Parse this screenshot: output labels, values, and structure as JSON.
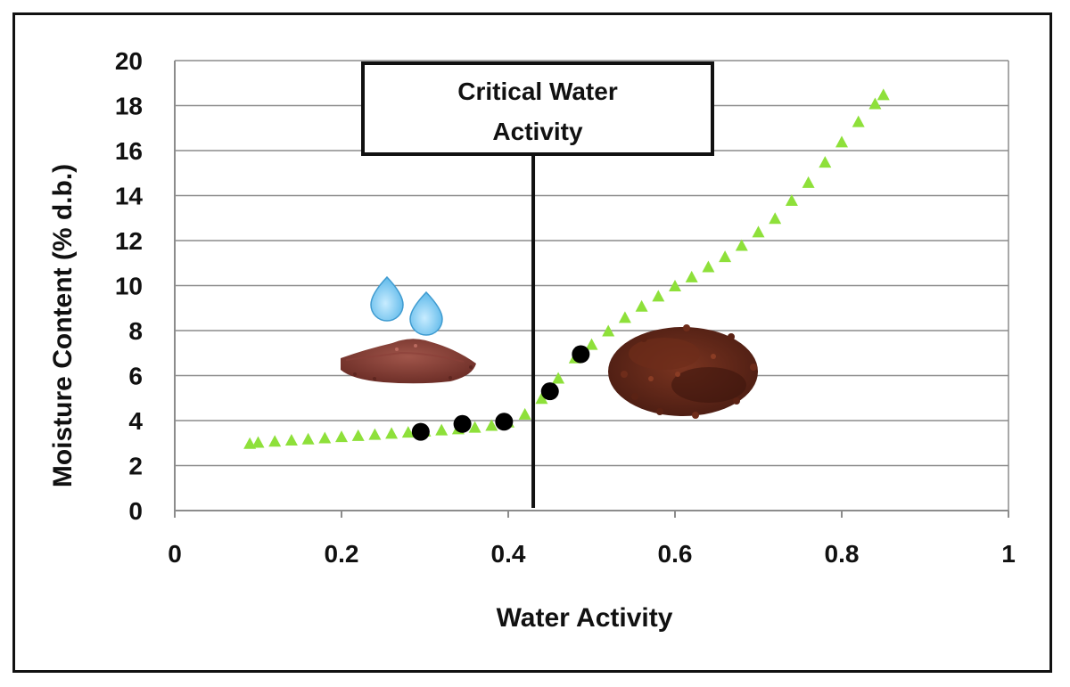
{
  "chart_data": {
    "type": "scatter",
    "title": "",
    "xlabel": "Water Activity",
    "ylabel": "Moisture Content (% d.b.)",
    "xlim": [
      0,
      1
    ],
    "ylim": [
      0,
      20
    ],
    "x_ticks": [
      "0",
      "0.2",
      "0.4",
      "0.6",
      "0.8",
      "1"
    ],
    "y_ticks": [
      "0",
      "2",
      "4",
      "6",
      "8",
      "10",
      "12",
      "14",
      "16",
      "18",
      "20"
    ],
    "grid": "horizontal",
    "legend": "none",
    "series": [
      {
        "marker": "triangle",
        "color": "#8ee03a",
        "x": [
          0.09,
          0.1,
          0.12,
          0.14,
          0.16,
          0.18,
          0.2,
          0.22,
          0.24,
          0.26,
          0.28,
          0.3,
          0.32,
          0.34,
          0.36,
          0.38,
          0.4,
          0.42,
          0.44,
          0.46,
          0.48,
          0.5,
          0.52,
          0.54,
          0.56,
          0.58,
          0.6,
          0.62,
          0.64,
          0.66,
          0.68,
          0.7,
          0.72,
          0.74,
          0.76,
          0.78,
          0.8,
          0.82,
          0.84,
          0.85
        ],
        "y": [
          3.0,
          3.05,
          3.1,
          3.15,
          3.2,
          3.25,
          3.3,
          3.35,
          3.4,
          3.45,
          3.5,
          3.55,
          3.6,
          3.65,
          3.72,
          3.8,
          3.95,
          4.3,
          5.0,
          5.9,
          6.8,
          7.4,
          8.0,
          8.6,
          9.1,
          9.55,
          10.0,
          10.4,
          10.85,
          11.3,
          11.8,
          12.4,
          13.0,
          13.8,
          14.6,
          15.5,
          16.4,
          17.3,
          18.1,
          18.5
        ]
      },
      {
        "marker": "circle",
        "color": "#000000",
        "x": [
          0.295,
          0.345,
          0.395,
          0.45,
          0.487
        ],
        "y": [
          3.5,
          3.85,
          3.95,
          5.3,
          6.95
        ]
      }
    ],
    "annotations": [
      {
        "type": "vertical-line",
        "x": 0.43
      },
      {
        "type": "callout",
        "lines": [
          "Critical Water",
          "Activity"
        ]
      }
    ],
    "icons": [
      "water-droplet-icon",
      "water-droplet-icon",
      "powder-pile-image",
      "granules-pile-image"
    ]
  }
}
